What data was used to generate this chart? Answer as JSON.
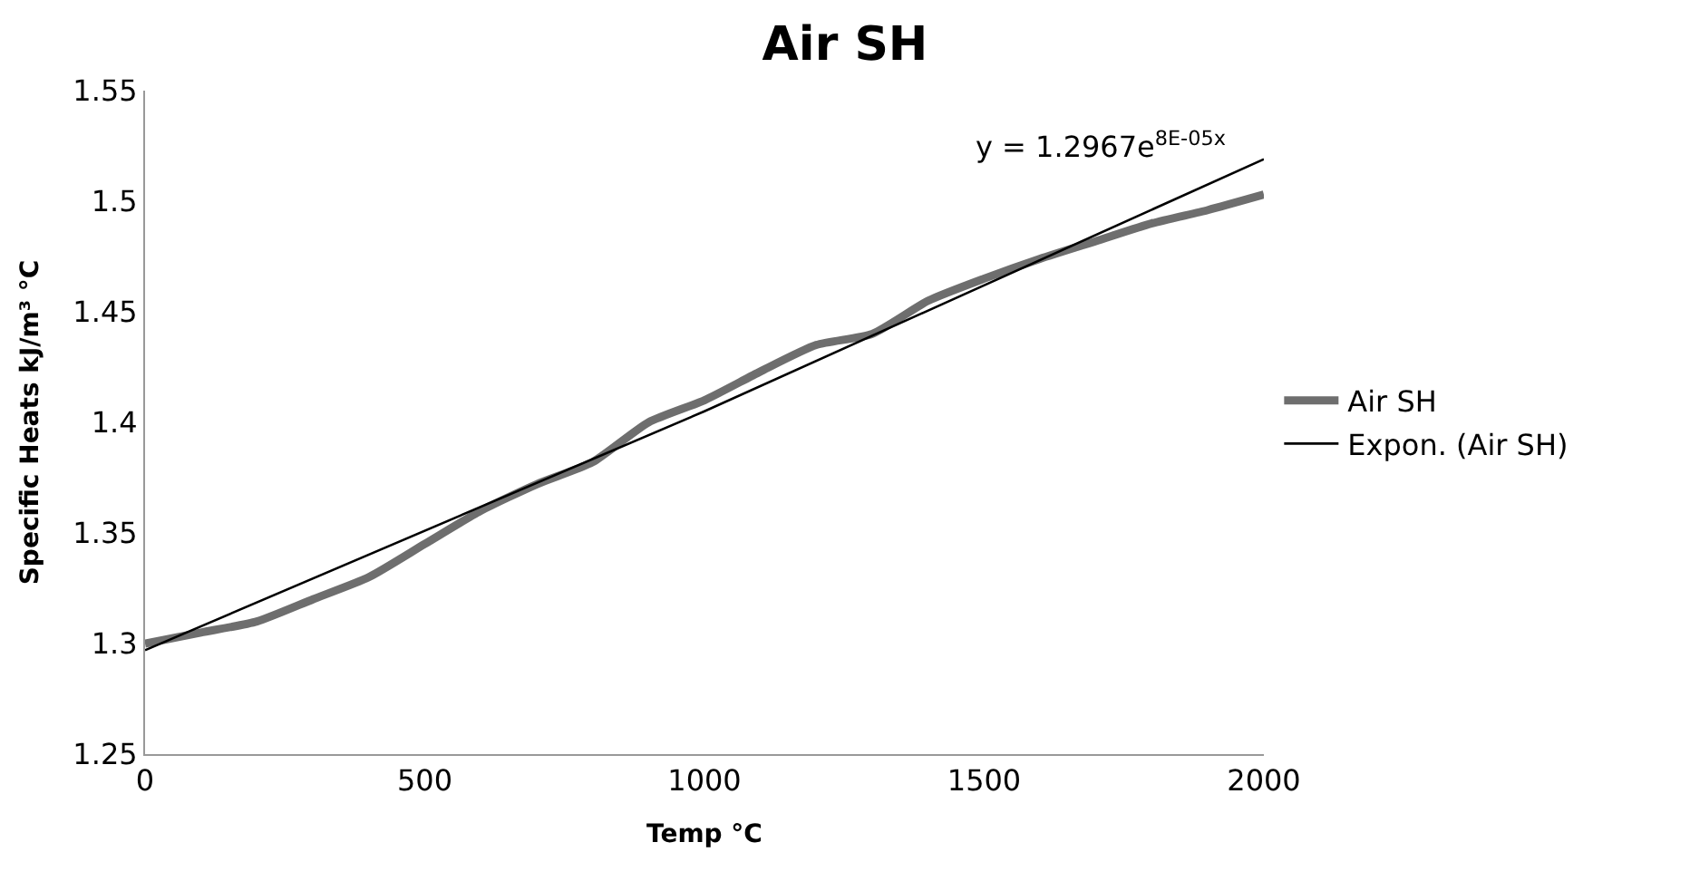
{
  "chart_data": {
    "type": "line",
    "title": "Air SH",
    "xlabel": "Temp °C",
    "ylabel": "Specific Heats kJ/m³ °C",
    "x": [
      0,
      100,
      200,
      300,
      400,
      500,
      600,
      700,
      800,
      900,
      1000,
      1100,
      1200,
      1300,
      1400,
      1500,
      1600,
      1700,
      1800,
      1900,
      2000
    ],
    "series": [
      {
        "name": "Air SH",
        "color": "#6e6e6e",
        "values": [
          1.3,
          1.305,
          1.31,
          1.32,
          1.33,
          1.345,
          1.36,
          1.372,
          1.382,
          1.4,
          1.41,
          1.423,
          1.435,
          1.44,
          1.455,
          1.465,
          1.474,
          1.482,
          1.49,
          1.496,
          1.503
        ]
      },
      {
        "name": "Expon. (Air SH)",
        "color": "#000000",
        "type": "line",
        "x": [
          0,
          1000,
          2000
        ],
        "values": [
          1.297,
          1.405,
          1.519
        ]
      }
    ],
    "annotations": [
      "y = 1.2967e$^{8E-05x}$"
    ],
    "xlim": [
      0,
      2000
    ],
    "xticks": [
      0,
      500,
      1000,
      1500,
      2000
    ],
    "ylim": [
      1.25,
      1.55
    ],
    "yticks": [
      1.25,
      1.3,
      1.35,
      1.4,
      1.45,
      1.5,
      1.55
    ],
    "legend": "right",
    "marker": "none",
    "line_style": "solid"
  }
}
